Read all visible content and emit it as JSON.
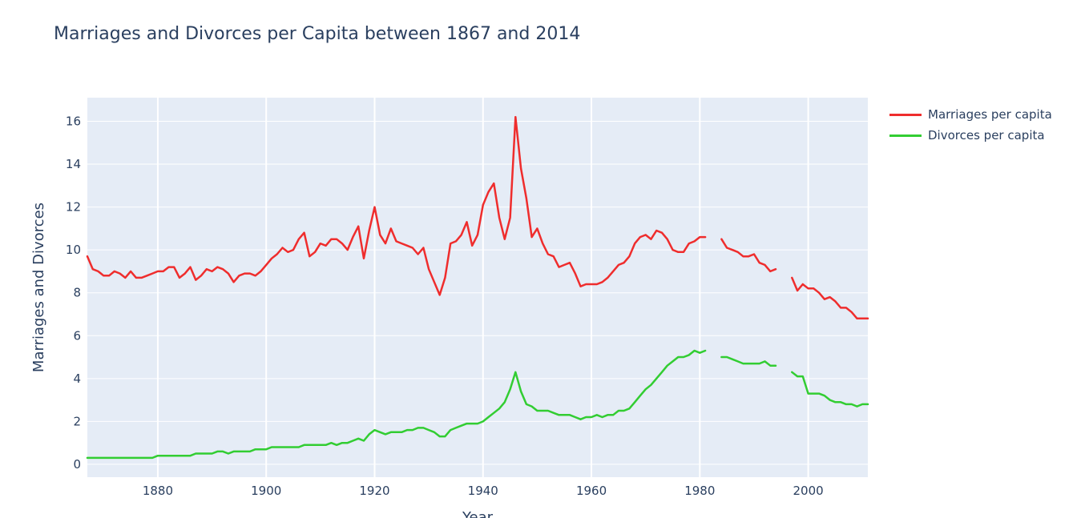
{
  "chart_data": {
    "type": "line",
    "title": "Marriages and Divorces per Capita between 1867 and 2014",
    "xlabel": "Year",
    "ylabel": "Marriages and Divorces",
    "xlim": [
      1867,
      2011
    ],
    "ylim": [
      -0.6,
      17.1
    ],
    "x_ticks": [
      1880,
      1900,
      1920,
      1940,
      1960,
      1980,
      2000
    ],
    "y_ticks": [
      0,
      2,
      4,
      6,
      8,
      10,
      12,
      14,
      16
    ],
    "grid": true,
    "legend_position": "top-right",
    "plot_background": "#E5ECF6",
    "series": [
      {
        "name": "Marriages per capita",
        "color": "#EF2D2D",
        "x": [
          1867,
          1868,
          1869,
          1870,
          1871,
          1872,
          1873,
          1874,
          1875,
          1876,
          1877,
          1878,
          1879,
          1880,
          1881,
          1882,
          1883,
          1884,
          1885,
          1886,
          1887,
          1888,
          1889,
          1890,
          1891,
          1892,
          1893,
          1894,
          1895,
          1896,
          1897,
          1898,
          1899,
          1900,
          1901,
          1902,
          1903,
          1904,
          1905,
          1906,
          1907,
          1908,
          1909,
          1910,
          1911,
          1912,
          1913,
          1914,
          1915,
          1916,
          1917,
          1918,
          1919,
          1920,
          1921,
          1922,
          1923,
          1924,
          1925,
          1926,
          1927,
          1928,
          1929,
          1930,
          1931,
          1932,
          1933,
          1934,
          1935,
          1936,
          1937,
          1938,
          1939,
          1940,
          1941,
          1942,
          1943,
          1944,
          1945,
          1946,
          1947,
          1948,
          1949,
          1950,
          1951,
          1952,
          1953,
          1954,
          1955,
          1956,
          1957,
          1958,
          1959,
          1960,
          1961,
          1962,
          1963,
          1964,
          1965,
          1966,
          1967,
          1968,
          1969,
          1970,
          1971,
          1972,
          1973,
          1974,
          1975,
          1976,
          1977,
          1978,
          1979,
          1980,
          1981,
          1982,
          1983,
          1984,
          1985,
          1986,
          1987,
          1988,
          1989,
          1990,
          1991,
          1992,
          1993,
          1994,
          1995,
          1996,
          1997,
          1998,
          1999,
          2000,
          2001,
          2002,
          2003,
          2004,
          2005,
          2006,
          2007,
          2008,
          2009,
          2010,
          2011
        ],
        "values": [
          9.7,
          9.1,
          9.0,
          8.8,
          8.8,
          9.0,
          8.9,
          8.7,
          9.0,
          8.7,
          8.7,
          8.8,
          8.9,
          9.0,
          9.0,
          9.2,
          9.2,
          8.7,
          8.9,
          9.2,
          8.6,
          8.8,
          9.1,
          9.0,
          9.2,
          9.1,
          8.9,
          8.5,
          8.8,
          8.9,
          8.9,
          8.8,
          9.0,
          9.3,
          9.6,
          9.8,
          10.1,
          9.9,
          10.0,
          10.5,
          10.8,
          9.7,
          9.9,
          10.3,
          10.2,
          10.5,
          10.5,
          10.3,
          10.0,
          10.6,
          11.1,
          9.6,
          10.9,
          12.0,
          10.7,
          10.3,
          11.0,
          10.4,
          10.3,
          10.2,
          10.1,
          9.8,
          10.1,
          9.1,
          8.5,
          7.9,
          8.7,
          10.3,
          10.4,
          10.7,
          11.3,
          10.2,
          10.7,
          12.1,
          12.7,
          13.1,
          11.5,
          10.5,
          11.5,
          16.2,
          13.8,
          12.4,
          10.6,
          11.0,
          10.3,
          9.8,
          9.7,
          9.2,
          9.3,
          9.4,
          8.9,
          8.3,
          8.4,
          8.4,
          8.4,
          8.5,
          8.7,
          9.0,
          9.3,
          9.4,
          9.7,
          10.3,
          10.6,
          10.7,
          10.5,
          10.9,
          10.8,
          10.5,
          10.0,
          9.9,
          9.9,
          10.3,
          10.4,
          10.6,
          10.6,
          null,
          null,
          10.5,
          10.1,
          10.0,
          9.9,
          9.7,
          9.7,
          9.8,
          9.4,
          9.3,
          9.0,
          9.1,
          null,
          null,
          8.7,
          8.1,
          8.4,
          8.2,
          8.2,
          8.0,
          7.7,
          7.8,
          7.6,
          7.3,
          7.3,
          7.1,
          6.8,
          6.8,
          6.8
        ]
      },
      {
        "name": "Divorces per capita",
        "color": "#32CD32",
        "x": [
          1867,
          1868,
          1869,
          1870,
          1871,
          1872,
          1873,
          1874,
          1875,
          1876,
          1877,
          1878,
          1879,
          1880,
          1881,
          1882,
          1883,
          1884,
          1885,
          1886,
          1887,
          1888,
          1889,
          1890,
          1891,
          1892,
          1893,
          1894,
          1895,
          1896,
          1897,
          1898,
          1899,
          1900,
          1901,
          1902,
          1903,
          1904,
          1905,
          1906,
          1907,
          1908,
          1909,
          1910,
          1911,
          1912,
          1913,
          1914,
          1915,
          1916,
          1917,
          1918,
          1919,
          1920,
          1921,
          1922,
          1923,
          1924,
          1925,
          1926,
          1927,
          1928,
          1929,
          1930,
          1931,
          1932,
          1933,
          1934,
          1935,
          1936,
          1937,
          1938,
          1939,
          1940,
          1941,
          1942,
          1943,
          1944,
          1945,
          1946,
          1947,
          1948,
          1949,
          1950,
          1951,
          1952,
          1953,
          1954,
          1955,
          1956,
          1957,
          1958,
          1959,
          1960,
          1961,
          1962,
          1963,
          1964,
          1965,
          1966,
          1967,
          1968,
          1969,
          1970,
          1971,
          1972,
          1973,
          1974,
          1975,
          1976,
          1977,
          1978,
          1979,
          1980,
          1981,
          1982,
          1983,
          1984,
          1985,
          1986,
          1987,
          1988,
          1989,
          1990,
          1991,
          1992,
          1993,
          1994,
          1995,
          1996,
          1997,
          1998,
          1999,
          2000,
          2001,
          2002,
          2003,
          2004,
          2005,
          2006,
          2007,
          2008,
          2009,
          2010,
          2011
        ],
        "values": [
          0.3,
          0.3,
          0.3,
          0.3,
          0.3,
          0.3,
          0.3,
          0.3,
          0.3,
          0.3,
          0.3,
          0.3,
          0.3,
          0.4,
          0.4,
          0.4,
          0.4,
          0.4,
          0.4,
          0.4,
          0.5,
          0.5,
          0.5,
          0.5,
          0.6,
          0.6,
          0.5,
          0.6,
          0.6,
          0.6,
          0.6,
          0.7,
          0.7,
          0.7,
          0.8,
          0.8,
          0.8,
          0.8,
          0.8,
          0.8,
          0.9,
          0.9,
          0.9,
          0.9,
          0.9,
          1.0,
          0.9,
          1.0,
          1.0,
          1.1,
          1.2,
          1.1,
          1.4,
          1.6,
          1.5,
          1.4,
          1.5,
          1.5,
          1.5,
          1.6,
          1.6,
          1.7,
          1.7,
          1.6,
          1.5,
          1.3,
          1.3,
          1.6,
          1.7,
          1.8,
          1.9,
          1.9,
          1.9,
          2.0,
          2.2,
          2.4,
          2.6,
          2.9,
          3.5,
          4.3,
          3.4,
          2.8,
          2.7,
          2.5,
          2.5,
          2.5,
          2.4,
          2.3,
          2.3,
          2.3,
          2.2,
          2.1,
          2.2,
          2.2,
          2.3,
          2.2,
          2.3,
          2.3,
          2.5,
          2.5,
          2.6,
          2.9,
          3.2,
          3.5,
          3.7,
          4.0,
          4.3,
          4.6,
          4.8,
          5.0,
          5.0,
          5.1,
          5.3,
          5.2,
          5.3,
          null,
          null,
          5.0,
          5.0,
          4.9,
          4.8,
          4.7,
          4.7,
          4.7,
          4.7,
          4.8,
          4.6,
          4.6,
          null,
          null,
          4.3,
          4.1,
          4.1,
          3.3,
          3.3,
          3.3,
          3.2,
          3.0,
          2.9,
          2.9,
          2.8,
          2.8,
          2.7,
          2.8,
          2.8
        ]
      }
    ]
  }
}
